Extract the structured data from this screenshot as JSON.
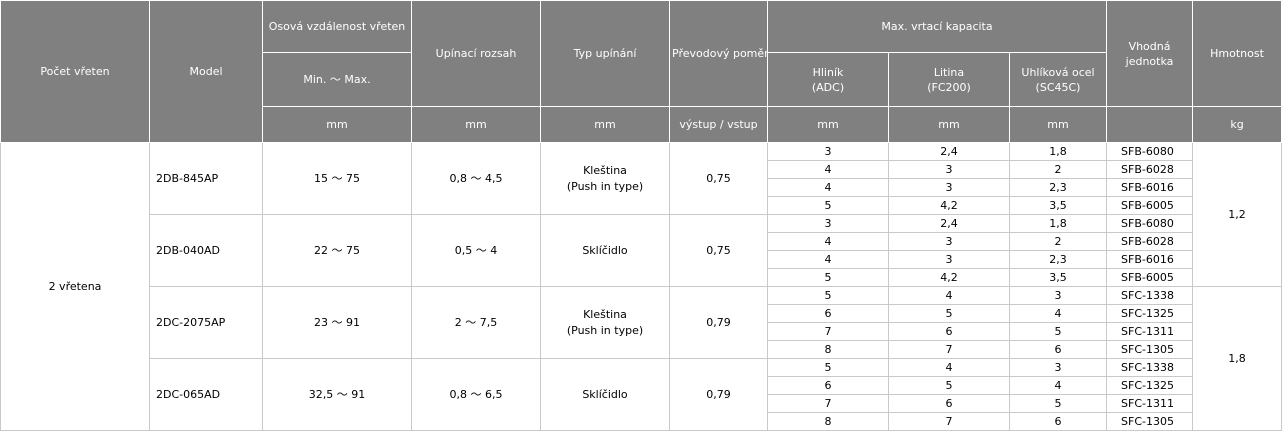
{
  "header": {
    "pocet_vreten": "Počet vřeten",
    "model": "Model",
    "osova_vzdalenost": "Osová vzdálenost vřeten",
    "min_max": "Min. ～ Max.",
    "upinaci_rozsah": "Upínací rozsah",
    "typ_upinani": "Typ upínání",
    "prevodovy_pomer": "Převodový poměr",
    "max_vrtaci_kapacita": "Max. vrtací kapacita",
    "hlinik": "Hliník",
    "hlinik_sub": "(ADC)",
    "litina": "Litina",
    "litina_sub": "(FC200)",
    "uhlikova_ocel": "Uhlíková ocel",
    "uhlikova_ocel_sub": "(SC45C)",
    "vhodna_jednotka": "Vhodná jednotka",
    "hmotnost": "Hmotnost",
    "units": {
      "osova": "mm",
      "upinaci": "mm",
      "typ": "mm",
      "pomer": "výstup / vstup",
      "hlinik": "mm",
      "litina": "mm",
      "ocel": "mm",
      "hmotnost": "kg"
    }
  },
  "spindle_group": "2 vřetena",
  "weights": [
    "1,2",
    "1,8"
  ],
  "models": [
    {
      "model": "2DB-845AP",
      "distance": "15 ～ 75",
      "clamp_range": "0,8 ～ 4,5",
      "clamp_type": "Kleština",
      "clamp_type_sub": "(Push in type)",
      "ratio": "0,75",
      "rows": [
        {
          "al": "3",
          "ci": "2,4",
          "cs": "1,8",
          "unit": "SFB-6080"
        },
        {
          "al": "4",
          "ci": "3",
          "cs": "2",
          "unit": "SFB-6028"
        },
        {
          "al": "4",
          "ci": "3",
          "cs": "2,3",
          "unit": "SFB-6016"
        },
        {
          "al": "5",
          "ci": "4,2",
          "cs": "3,5",
          "unit": "SFB-6005"
        }
      ]
    },
    {
      "model": "2DB-040AD",
      "distance": "22 ～ 75",
      "clamp_range": "0,5 ～ 4",
      "clamp_type": "Sklíčidlo",
      "clamp_type_sub": "",
      "ratio": "0,75",
      "rows": [
        {
          "al": "3",
          "ci": "2,4",
          "cs": "1,8",
          "unit": "SFB-6080"
        },
        {
          "al": "4",
          "ci": "3",
          "cs": "2",
          "unit": "SFB-6028"
        },
        {
          "al": "4",
          "ci": "3",
          "cs": "2,3",
          "unit": "SFB-6016"
        },
        {
          "al": "5",
          "ci": "4,2",
          "cs": "3,5",
          "unit": "SFB-6005"
        }
      ]
    },
    {
      "model": "2DC-2075AP",
      "distance": "23 ～ 91",
      "clamp_range": "2 ～ 7,5",
      "clamp_type": "Kleština",
      "clamp_type_sub": "(Push in type)",
      "ratio": "0,79",
      "rows": [
        {
          "al": "5",
          "ci": "4",
          "cs": "3",
          "unit": "SFC-1338"
        },
        {
          "al": "6",
          "ci": "5",
          "cs": "4",
          "unit": "SFC-1325"
        },
        {
          "al": "7",
          "ci": "6",
          "cs": "5",
          "unit": "SFC-1311"
        },
        {
          "al": "8",
          "ci": "7",
          "cs": "6",
          "unit": "SFC-1305"
        }
      ]
    },
    {
      "model": "2DC-065AD",
      "distance": "32,5 ～ 91",
      "clamp_range": "0,8 ～ 6,5",
      "clamp_type": "Sklíčidlo",
      "clamp_type_sub": "",
      "ratio": "0,79",
      "rows": [
        {
          "al": "5",
          "ci": "4",
          "cs": "3",
          "unit": "SFC-1338"
        },
        {
          "al": "6",
          "ci": "5",
          "cs": "4",
          "unit": "SFC-1325"
        },
        {
          "al": "7",
          "ci": "6",
          "cs": "5",
          "unit": "SFC-1311"
        },
        {
          "al": "8",
          "ci": "7",
          "cs": "6",
          "unit": "SFC-1305"
        }
      ]
    }
  ]
}
